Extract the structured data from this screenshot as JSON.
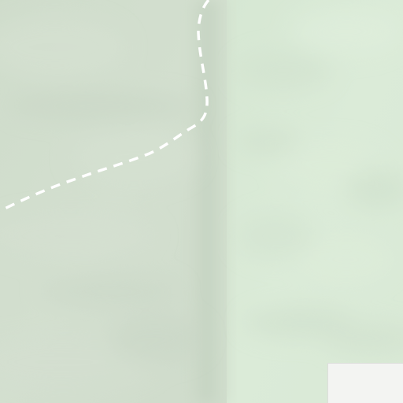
{
  "map": {
    "view": "terrain",
    "colors": {
      "terrain_left": "#cfdccb",
      "terrain_right": "#dbebd8",
      "valley_shade": "#c6d4c3",
      "boundary_line": "#ffffff",
      "attribution_box": "#f3f4f2"
    },
    "features": [
      {
        "name": "dashed-boundary-line",
        "style": "dashed"
      }
    ]
  }
}
